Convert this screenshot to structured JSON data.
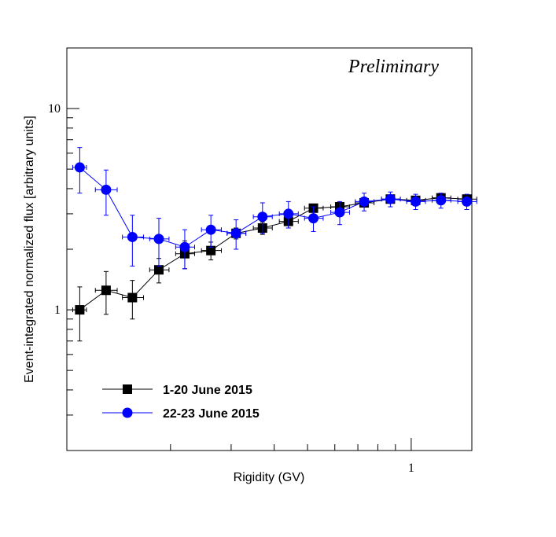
{
  "chart_data": {
    "type": "scatter",
    "title": "",
    "annotation": "Preliminary",
    "xlabel": "Rigidity (GV)",
    "ylabel": "Event-integrated normalized flux [arbitrary units]",
    "xscale": "log",
    "yscale": "log",
    "xlim": [
      0.1,
      1.5
    ],
    "ylim": [
      0.2,
      20
    ],
    "x_tick_labels": [
      {
        "value": 1,
        "label": "1"
      }
    ],
    "y_tick_labels": [
      {
        "value": 1,
        "label": "1"
      },
      {
        "value": 10,
        "label": "10"
      }
    ],
    "legend_position": "bottom-left",
    "series": [
      {
        "name": "1-20 June 2015",
        "color": "#000000",
        "marker": "square",
        "x": [
          0.109,
          0.13,
          0.155,
          0.185,
          0.22,
          0.262,
          0.31,
          0.37,
          0.44,
          0.52,
          0.62,
          0.73,
          0.87,
          1.03,
          1.22,
          1.45
        ],
        "y": [
          1.0,
          1.25,
          1.15,
          1.58,
          1.9,
          1.97,
          2.4,
          2.55,
          2.75,
          3.2,
          3.25,
          3.4,
          3.55,
          3.5,
          3.6,
          3.55
        ],
        "y_err": [
          0.3,
          0.3,
          0.25,
          0.22,
          0.3,
          0.2,
          0.15,
          0.18,
          0.2,
          0.15,
          0.15,
          0.12,
          0.12,
          0.12,
          0.12,
          0.12
        ],
        "x_err_low": [
          0.005,
          0.009,
          0.01,
          0.011,
          0.013,
          0.016,
          0.018,
          0.022,
          0.026,
          0.03,
          0.036,
          0.042,
          0.05,
          0.06,
          0.07,
          0.085
        ],
        "x_err_high": [
          0.005,
          0.01,
          0.012,
          0.013,
          0.015,
          0.019,
          0.021,
          0.025,
          0.03,
          0.035,
          0.042,
          0.05,
          0.06,
          0.07,
          0.083,
          0.1
        ]
      },
      {
        "name": "22-23 June 2015",
        "color": "#0000ff",
        "marker": "circle",
        "x": [
          0.109,
          0.13,
          0.155,
          0.185,
          0.22,
          0.262,
          0.31,
          0.37,
          0.44,
          0.52,
          0.62,
          0.73,
          0.87,
          1.03,
          1.22,
          1.45
        ],
        "y": [
          5.1,
          3.95,
          2.3,
          2.25,
          2.05,
          2.5,
          2.4,
          2.9,
          3.0,
          2.85,
          3.05,
          3.45,
          3.55,
          3.45,
          3.5,
          3.45
        ],
        "y_err": [
          1.3,
          1.0,
          0.65,
          0.6,
          0.45,
          0.45,
          0.4,
          0.5,
          0.45,
          0.4,
          0.4,
          0.35,
          0.3,
          0.3,
          0.3,
          0.3
        ],
        "x_err_low": [
          0.005,
          0.009,
          0.01,
          0.011,
          0.013,
          0.016,
          0.018,
          0.022,
          0.026,
          0.03,
          0.036,
          0.042,
          0.05,
          0.06,
          0.07,
          0.085
        ],
        "x_err_high": [
          0.005,
          0.01,
          0.012,
          0.013,
          0.015,
          0.019,
          0.021,
          0.025,
          0.03,
          0.035,
          0.042,
          0.05,
          0.06,
          0.07,
          0.083,
          0.1
        ]
      }
    ]
  }
}
